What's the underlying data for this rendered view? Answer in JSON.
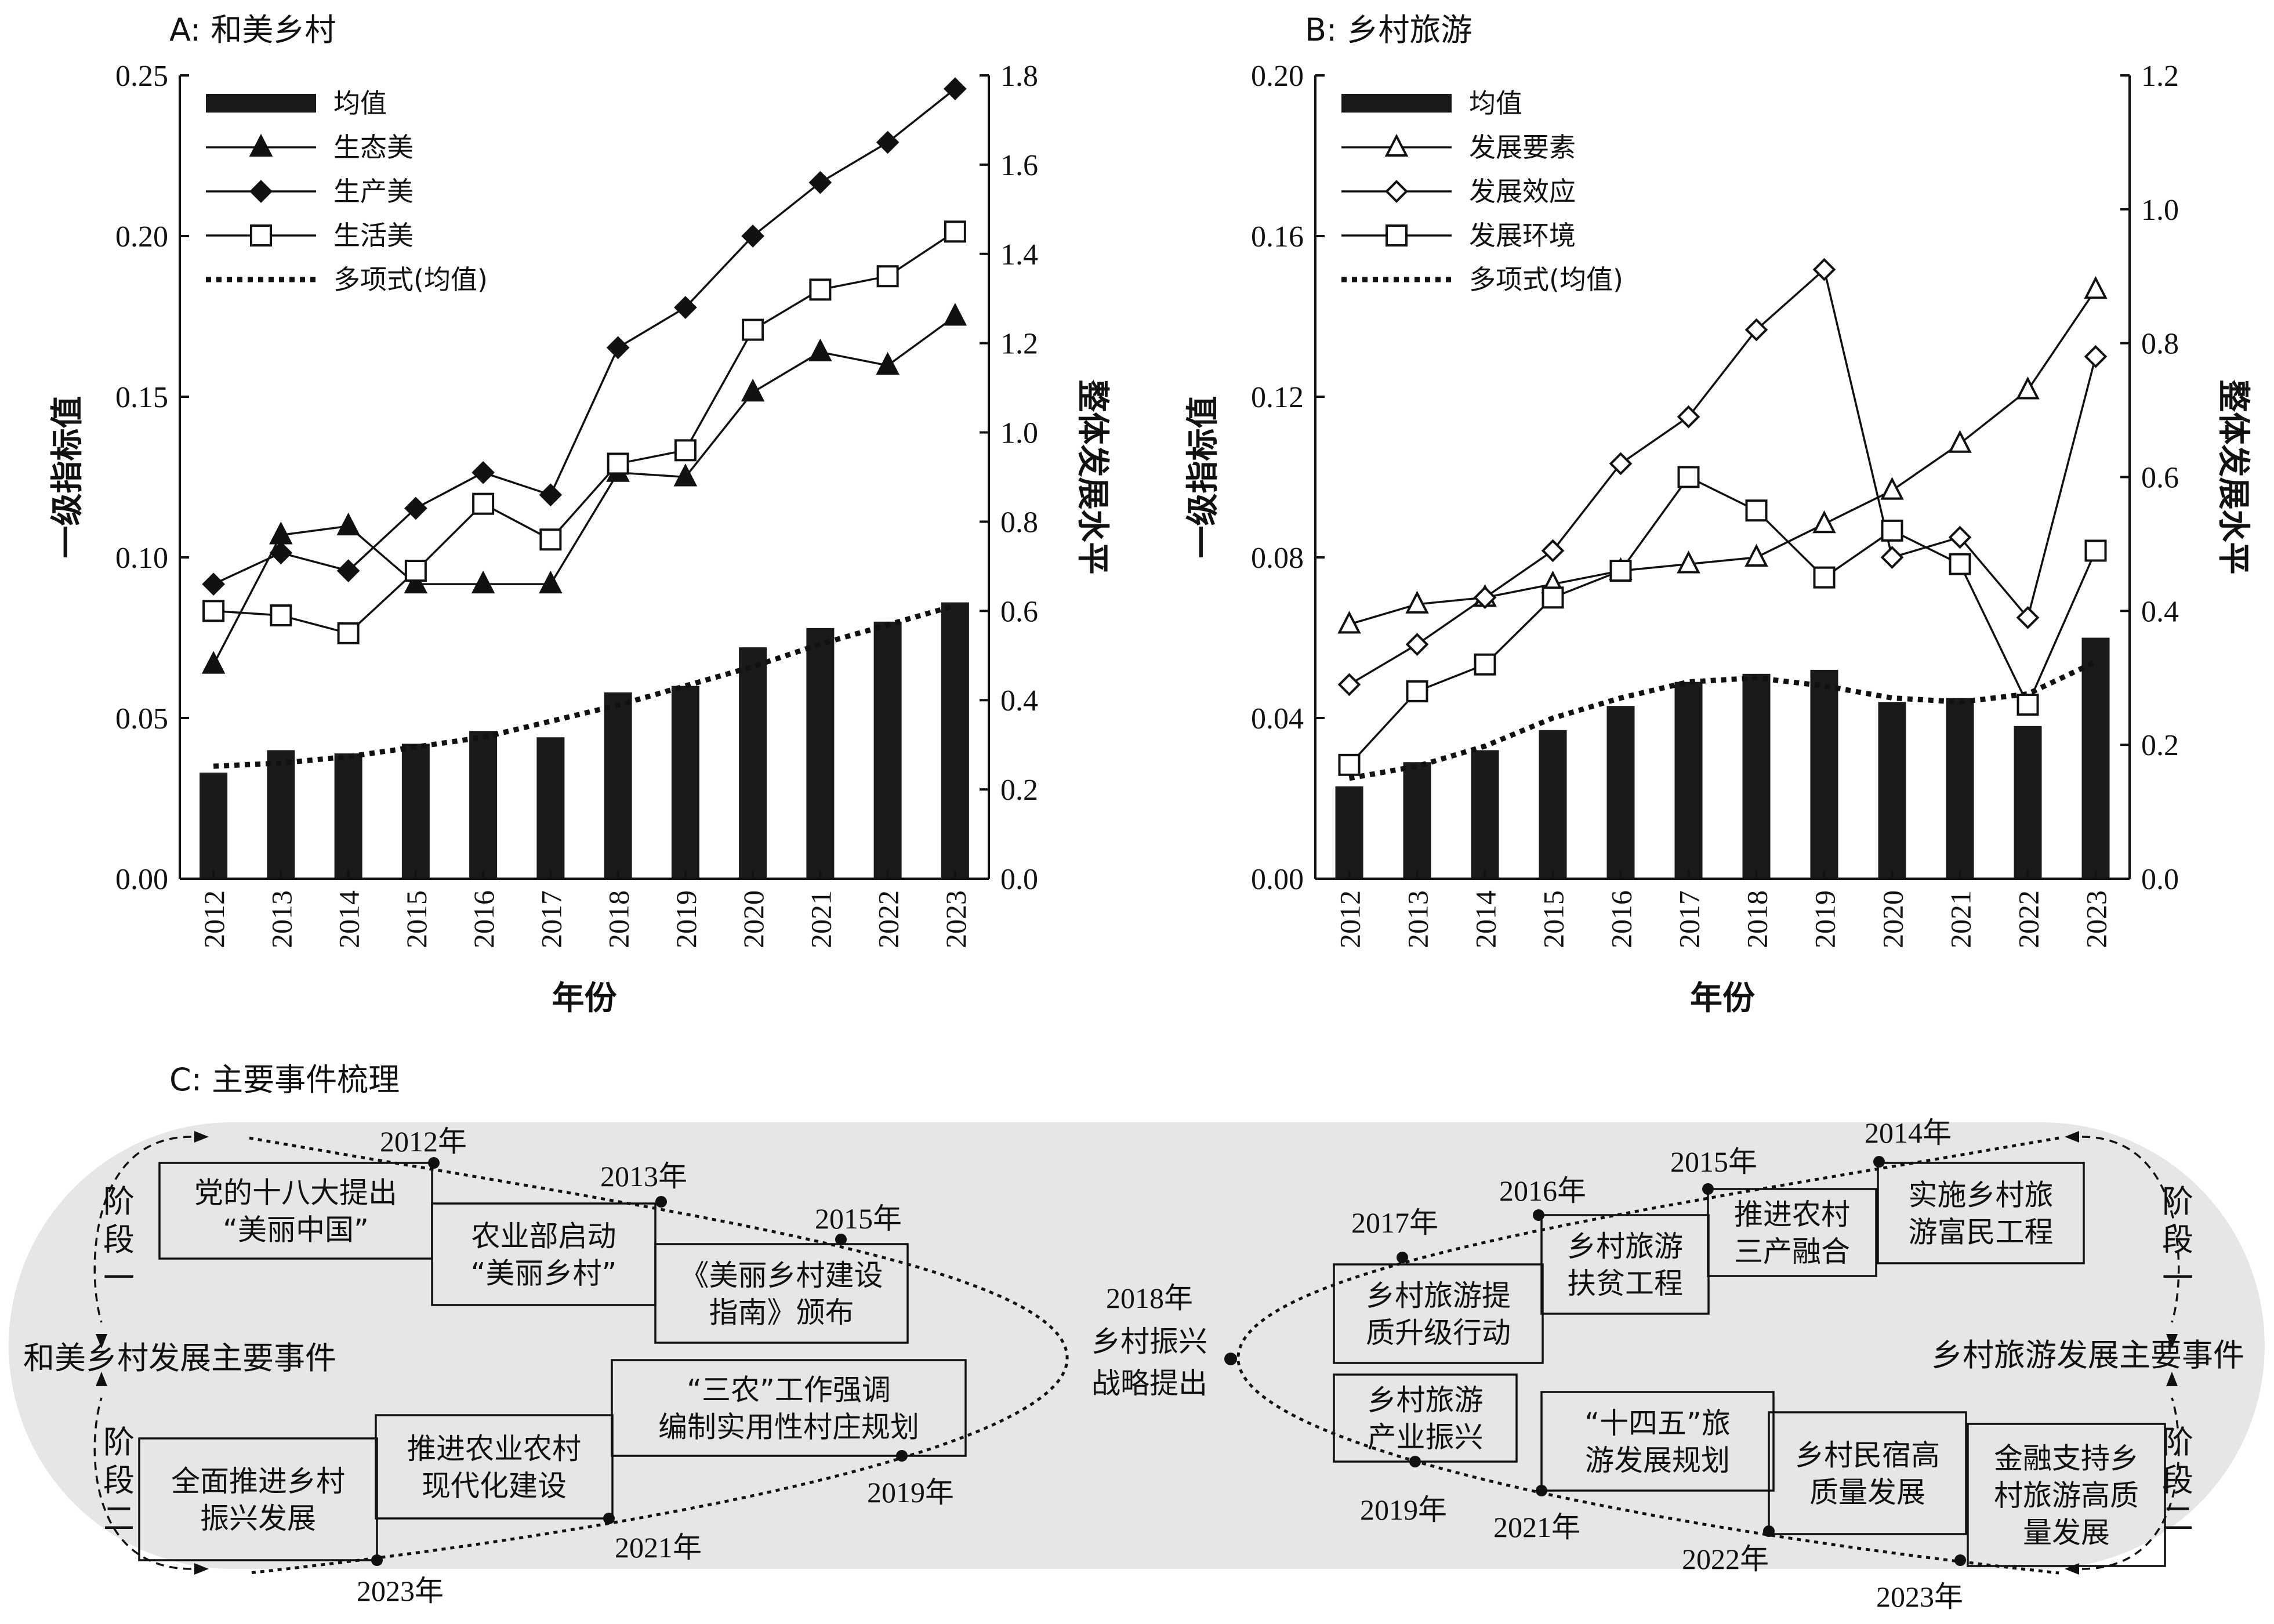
{
  "chart_data": [
    {
      "id": "A",
      "type": "bar+line",
      "title": "A: 和美乡村",
      "xlabel": "年份",
      "ylabel_left": "一级指标值",
      "ylabel_right": "整体发展水平",
      "ylim_left": [
        0,
        0.25
      ],
      "ylim_right": [
        0,
        1.8
      ],
      "yticks_left": [
        "0.00",
        "0.05",
        "0.10",
        "0.15",
        "0.20",
        "0.25"
      ],
      "yticks_right": [
        "0.0",
        "0.2",
        "0.4",
        "0.6",
        "0.8",
        "1.0",
        "1.2",
        "1.4",
        "1.6",
        "1.8"
      ],
      "categories": [
        "2012",
        "2013",
        "2014",
        "2015",
        "2016",
        "2017",
        "2018",
        "2019",
        "2020",
        "2021",
        "2022",
        "2023"
      ],
      "bars": {
        "name": "均值",
        "axis": "left",
        "values": [
          0.033,
          0.04,
          0.039,
          0.042,
          0.046,
          0.044,
          0.058,
          0.06,
          0.072,
          0.078,
          0.08,
          0.086
        ]
      },
      "series": [
        {
          "name": "生态美",
          "marker": "triangle-filled",
          "axis": "right",
          "values": [
            0.48,
            0.77,
            0.79,
            0.66,
            0.66,
            0.66,
            0.91,
            0.9,
            1.09,
            1.18,
            1.15,
            1.26
          ]
        },
        {
          "name": "生产美",
          "marker": "diamond-filled",
          "axis": "right",
          "values": [
            0.66,
            0.73,
            0.69,
            0.83,
            0.91,
            0.86,
            1.19,
            1.28,
            1.44,
            1.56,
            1.65,
            1.77
          ]
        },
        {
          "name": "生活美",
          "marker": "square-open",
          "axis": "right",
          "values": [
            0.6,
            0.59,
            0.55,
            0.69,
            0.84,
            0.76,
            0.93,
            0.96,
            1.23,
            1.32,
            1.35,
            1.45
          ]
        }
      ],
      "trend": {
        "name": "多项式(均值)",
        "axis": "left",
        "values": [
          0.035,
          0.036,
          0.038,
          0.041,
          0.044,
          0.049,
          0.054,
          0.06,
          0.066,
          0.073,
          0.079,
          0.085
        ]
      },
      "legend_location": "top-left"
    },
    {
      "id": "B",
      "type": "bar+line",
      "title": "B: 乡村旅游",
      "xlabel": "年份",
      "ylabel_left": "一级指标值",
      "ylabel_right": "整体发展水平",
      "ylim_left": [
        0,
        0.2
      ],
      "ylim_right": [
        0,
        1.2
      ],
      "yticks_left": [
        "0.00",
        "0.04",
        "0.08",
        "0.12",
        "0.16",
        "0.20"
      ],
      "yticks_right": [
        "0.0",
        "0.2",
        "0.4",
        "0.6",
        "0.8",
        "1.0",
        "1.2"
      ],
      "categories": [
        "2012",
        "2013",
        "2014",
        "2015",
        "2016",
        "2017",
        "2018",
        "2019",
        "2020",
        "2021",
        "2022",
        "2023"
      ],
      "bars": {
        "name": "均值",
        "axis": "left",
        "values": [
          0.023,
          0.029,
          0.032,
          0.037,
          0.043,
          0.049,
          0.051,
          0.052,
          0.044,
          0.045,
          0.038,
          0.06
        ]
      },
      "series": [
        {
          "name": "发展要素",
          "marker": "triangle-open",
          "axis": "right",
          "values": [
            0.38,
            0.41,
            0.42,
            0.44,
            0.46,
            0.47,
            0.48,
            0.53,
            0.58,
            0.65,
            0.73,
            0.88
          ]
        },
        {
          "name": "发展效应",
          "marker": "diamond-open",
          "axis": "right",
          "values": [
            0.29,
            0.35,
            0.42,
            0.49,
            0.62,
            0.69,
            0.82,
            0.91,
            0.48,
            0.51,
            0.39,
            0.78
          ]
        },
        {
          "name": "发展环境",
          "marker": "square-open",
          "axis": "right",
          "values": [
            0.17,
            0.28,
            0.32,
            0.42,
            0.46,
            0.6,
            0.55,
            0.45,
            0.52,
            0.47,
            0.26,
            0.49
          ]
        }
      ],
      "trend": {
        "name": "多项式(均值)",
        "axis": "left",
        "values": [
          0.025,
          0.028,
          0.033,
          0.04,
          0.045,
          0.049,
          0.05,
          0.048,
          0.045,
          0.044,
          0.046,
          0.054
        ]
      },
      "legend_location": "top-left"
    }
  ],
  "panel_c": {
    "title": "C: 主要事件梳理",
    "center": {
      "year": "2018年",
      "line1": "乡村振兴",
      "line2": "战略提出"
    },
    "left_label": "和美乡村发展主要事件",
    "right_label": "乡村旅游发展主要事件",
    "stage1": [
      "阶",
      "段",
      "一"
    ],
    "stage2": [
      "阶",
      "段",
      "二"
    ],
    "left_upper": [
      {
        "year": "2012年",
        "lines": [
          "党的十八大提出",
          "“美丽中国”"
        ]
      },
      {
        "year": "2013年",
        "lines": [
          "农业部启动",
          "“美丽乡村”"
        ]
      },
      {
        "year": "2015年",
        "lines": [
          "《美丽乡村建设",
          "指南》颁布"
        ]
      }
    ],
    "left_lower": [
      {
        "year": "2019年",
        "lines": [
          "“三农”工作强调",
          "编制实用性村庄规划"
        ]
      },
      {
        "year": "2021年",
        "lines": [
          "推进农业农村",
          "现代化建设"
        ]
      },
      {
        "year": "2023年",
        "lines": [
          "全面推进乡村",
          "振兴发展"
        ]
      }
    ],
    "right_upper": [
      {
        "year": "2014年",
        "lines": [
          "实施乡村旅",
          "游富民工程"
        ]
      },
      {
        "year": "2015年",
        "lines": [
          "推进农村",
          "三产融合"
        ]
      },
      {
        "year": "2016年",
        "lines": [
          "乡村旅游",
          "扶贫工程"
        ]
      },
      {
        "year": "2017年",
        "lines": [
          "乡村旅游提",
          "质升级行动"
        ]
      }
    ],
    "right_lower": [
      {
        "year": "2019年",
        "lines": [
          "乡村旅游",
          "产业振兴"
        ]
      },
      {
        "year": "2021年",
        "lines": [
          "“十四五”旅",
          "游发展规划"
        ]
      },
      {
        "year": "2022年",
        "lines": [
          "乡村民宿高",
          "质量发展"
        ]
      },
      {
        "year": "2023年",
        "lines": [
          "金融支持乡",
          "村旅游高质",
          "量发展"
        ]
      }
    ]
  }
}
